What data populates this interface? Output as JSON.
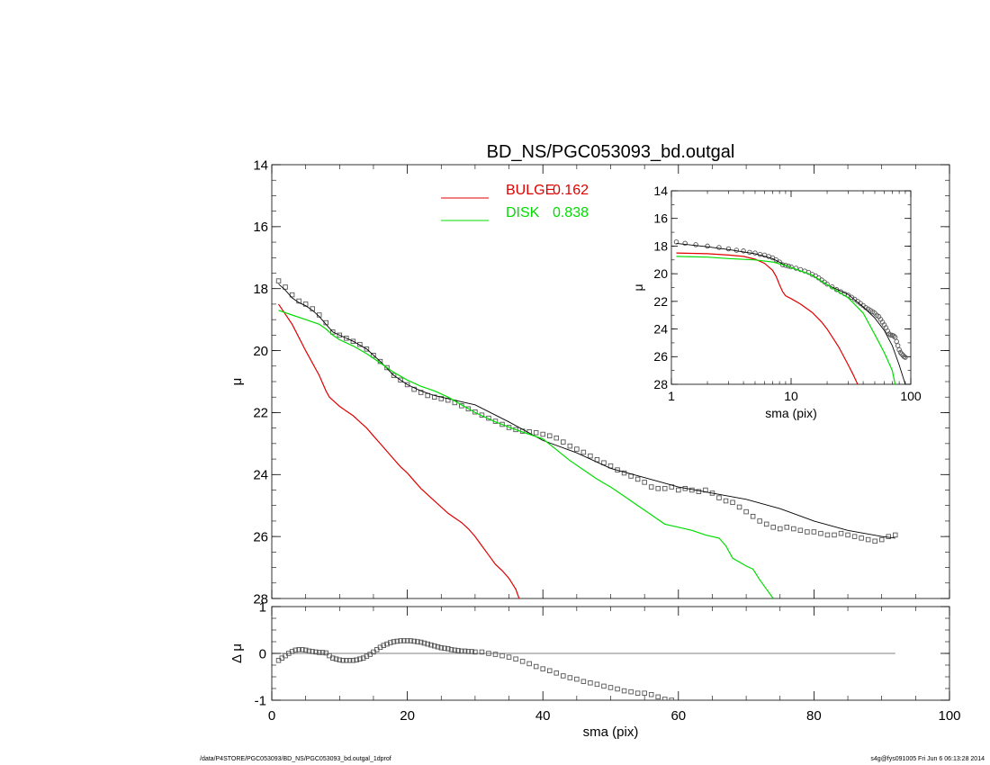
{
  "chart_data": [
    {
      "id": "main",
      "type": "line",
      "title": "BD_NS/PGC053093_bd.outgal",
      "xlabel": "",
      "ylabel": "μ",
      "xlim": [
        0,
        100
      ],
      "ylim": [
        28,
        14
      ],
      "y_inverted": true,
      "xticks": [
        "0",
        "20",
        "40",
        "60",
        "80",
        "100"
      ],
      "yticks": [
        "14",
        "16",
        "18",
        "20",
        "22",
        "24",
        "26",
        "28"
      ],
      "legend": {
        "placement": "top-center",
        "entries": [
          {
            "label": "BULGE",
            "value": "0.162",
            "color": "#e00000"
          },
          {
            "label": "DISK",
            "value": "0.838",
            "color": "#00dd00"
          }
        ]
      },
      "series": [
        {
          "role": "data",
          "color": "#000000",
          "marker": "square",
          "x": [
            1,
            2,
            3,
            4,
            5,
            6,
            7,
            8,
            9,
            10,
            11,
            12,
            13,
            14,
            15,
            16,
            17,
            18,
            19,
            20,
            21,
            22,
            23,
            24,
            25,
            26,
            27,
            28,
            29,
            30,
            31,
            32,
            33,
            34,
            35,
            36,
            37,
            38,
            39,
            40,
            41,
            42,
            43,
            44,
            45,
            46,
            47,
            48,
            49,
            50,
            51,
            52,
            53,
            54,
            55,
            56,
            57,
            58,
            59,
            60,
            61,
            62,
            63,
            64,
            65,
            66,
            67,
            68,
            69,
            70,
            71,
            72,
            73,
            74,
            75,
            76,
            77,
            78,
            79,
            80,
            81,
            82,
            83,
            84,
            85,
            86,
            87,
            88,
            89,
            90,
            91,
            92
          ],
          "y": [
            17.75,
            17.95,
            18.2,
            18.4,
            18.5,
            18.65,
            18.85,
            19.1,
            19.4,
            19.5,
            19.6,
            19.7,
            19.8,
            19.95,
            20.15,
            20.35,
            20.55,
            20.8,
            20.95,
            21.1,
            21.25,
            21.35,
            21.45,
            21.5,
            21.55,
            21.6,
            21.68,
            21.78,
            21.88,
            21.98,
            22.08,
            22.18,
            22.28,
            22.38,
            22.48,
            22.55,
            22.6,
            22.62,
            22.65,
            22.7,
            22.75,
            22.82,
            22.95,
            23.08,
            23.18,
            23.28,
            23.4,
            23.52,
            23.62,
            23.72,
            23.85,
            23.95,
            24.05,
            24.15,
            24.25,
            24.4,
            24.45,
            24.45,
            24.4,
            24.5,
            24.45,
            24.5,
            24.55,
            24.5,
            24.6,
            24.75,
            24.85,
            24.9,
            25.05,
            25.2,
            25.35,
            25.5,
            25.6,
            25.7,
            25.75,
            25.7,
            25.75,
            25.8,
            25.85,
            25.85,
            25.9,
            25.95,
            25.95,
            25.9,
            25.95,
            26.0,
            26.05,
            26.1,
            26.15,
            26.1,
            26.0,
            25.95
          ]
        },
        {
          "role": "model",
          "color": "#000000",
          "x": [
            1,
            2,
            3,
            4,
            5,
            6,
            7,
            8,
            9,
            10,
            12,
            14,
            16,
            18,
            20,
            22,
            24,
            26,
            28,
            30,
            35,
            40,
            45,
            50,
            55,
            60,
            65,
            70,
            75,
            80,
            85,
            90,
            92
          ],
          "y": [
            17.85,
            18.05,
            18.3,
            18.45,
            18.55,
            18.7,
            18.9,
            19.15,
            19.4,
            19.5,
            19.7,
            19.95,
            20.35,
            20.8,
            21.1,
            21.3,
            21.45,
            21.55,
            21.65,
            21.75,
            22.3,
            22.9,
            23.3,
            23.8,
            24.1,
            24.4,
            24.6,
            24.8,
            25.1,
            25.5,
            25.8,
            26.0,
            26.05
          ]
        },
        {
          "name": "BULGE",
          "color": "#e00000",
          "x": [
            1,
            3,
            5,
            7,
            8,
            8.5,
            9,
            9.5,
            10,
            11,
            12,
            13,
            14,
            15,
            16,
            17,
            18,
            19,
            20,
            21,
            22,
            23,
            24,
            25,
            26,
            27,
            28,
            29,
            30,
            31,
            32,
            33,
            34,
            35,
            36,
            36.5
          ],
          "y": [
            18.5,
            19.15,
            20.0,
            20.8,
            21.3,
            21.5,
            21.6,
            21.7,
            21.8,
            21.95,
            22.1,
            22.3,
            22.5,
            22.75,
            23.0,
            23.25,
            23.5,
            23.75,
            23.95,
            24.2,
            24.45,
            24.65,
            24.85,
            25.05,
            25.25,
            25.4,
            25.55,
            25.75,
            26.0,
            26.3,
            26.6,
            26.9,
            27.1,
            27.35,
            27.7,
            28.0
          ]
        },
        {
          "name": "DISK",
          "color": "#00dd00",
          "x": [
            1,
            3,
            5,
            7,
            8,
            9,
            10,
            12,
            14,
            16,
            18,
            20,
            22,
            24,
            26,
            28,
            30,
            33,
            36,
            38,
            40,
            42,
            44,
            46,
            48,
            50,
            52,
            54,
            56,
            57,
            58,
            60,
            62,
            64,
            66,
            67,
            68,
            70,
            71,
            72,
            73,
            74
          ],
          "y": [
            18.7,
            18.85,
            19.0,
            19.15,
            19.3,
            19.5,
            19.65,
            19.85,
            20.1,
            20.4,
            20.7,
            20.95,
            21.15,
            21.3,
            21.5,
            21.75,
            22.0,
            22.3,
            22.55,
            22.7,
            22.85,
            23.2,
            23.55,
            23.85,
            24.15,
            24.4,
            24.7,
            25.0,
            25.3,
            25.45,
            25.6,
            25.7,
            25.8,
            25.95,
            26.05,
            26.3,
            26.7,
            26.95,
            27.05,
            27.4,
            27.7,
            28.0
          ]
        }
      ]
    },
    {
      "id": "residual",
      "type": "scatter",
      "xlabel": "sma (pix)",
      "ylabel": "Δ μ",
      "xlim": [
        0,
        100
      ],
      "ylim": [
        -1,
        1
      ],
      "xticks": [
        "0",
        "20",
        "40",
        "60",
        "80",
        "100"
      ],
      "yticks": [
        "1",
        "0",
        "-1"
      ],
      "zero_line_xrange": [
        0,
        92
      ],
      "series": [
        {
          "role": "residual",
          "color": "#000000",
          "marker": "square",
          "x": [
            1,
            1.5,
            2,
            2.5,
            3,
            3.5,
            4,
            4.5,
            5,
            5.5,
            6,
            6.5,
            7,
            7.5,
            8,
            8.5,
            9,
            9.5,
            10,
            10.5,
            11,
            11.5,
            12,
            12.5,
            13,
            13.5,
            14,
            14.5,
            15,
            15.5,
            16,
            16.5,
            17,
            17.5,
            18,
            18.5,
            19,
            19.5,
            20,
            20.5,
            21,
            21.5,
            22,
            22.5,
            23,
            23.5,
            24,
            24.5,
            25,
            25.5,
            26,
            26.5,
            27,
            27.5,
            28,
            28.5,
            29,
            29.5,
            30,
            31,
            32,
            33,
            34,
            35,
            36,
            37,
            38,
            39,
            40,
            41,
            42,
            43,
            44,
            45,
            46,
            47,
            48,
            49,
            50,
            51,
            52,
            53,
            54,
            55,
            56,
            57,
            58,
            59
          ],
          "y": [
            -0.15,
            -0.1,
            -0.05,
            0.0,
            0.04,
            0.07,
            0.08,
            0.08,
            0.07,
            0.05,
            0.04,
            0.03,
            0.02,
            0.02,
            0.01,
            -0.05,
            -0.1,
            -0.12,
            -0.14,
            -0.15,
            -0.15,
            -0.15,
            -0.15,
            -0.14,
            -0.12,
            -0.1,
            -0.06,
            -0.02,
            0.03,
            0.08,
            0.13,
            0.17,
            0.2,
            0.23,
            0.25,
            0.26,
            0.27,
            0.27,
            0.27,
            0.27,
            0.26,
            0.25,
            0.24,
            0.22,
            0.2,
            0.18,
            0.16,
            0.14,
            0.12,
            0.11,
            0.1,
            0.08,
            0.07,
            0.06,
            0.05,
            0.05,
            0.04,
            0.04,
            0.03,
            0.03,
            0.0,
            -0.02,
            -0.05,
            -0.08,
            -0.12,
            -0.17,
            -0.22,
            -0.28,
            -0.33,
            -0.37,
            -0.42,
            -0.48,
            -0.52,
            -0.55,
            -0.6,
            -0.63,
            -0.66,
            -0.7,
            -0.73,
            -0.76,
            -0.8,
            -0.82,
            -0.85,
            -0.85,
            -0.88,
            -0.93,
            -0.98,
            -1.0
          ]
        }
      ]
    },
    {
      "id": "inset",
      "type": "line",
      "xlabel": "sma (pix)",
      "ylabel": "μ",
      "xscale": "log",
      "xlim": [
        1,
        100
      ],
      "ylim": [
        28,
        14
      ],
      "y_inverted": true,
      "xticks": [
        "1",
        "10",
        "100"
      ],
      "yticks": [
        "14",
        "16",
        "18",
        "20",
        "22",
        "24",
        "26",
        "28"
      ],
      "series": [
        {
          "role": "data",
          "color": "#000000",
          "marker": "circle",
          "x": [
            1.1,
            1.3,
            1.6,
            2,
            2.5,
            3,
            3.5,
            4,
            4.5,
            5,
            5.5,
            6,
            6.5,
            7,
            7.5,
            8,
            8.5,
            9,
            9.5,
            10,
            11,
            12,
            13,
            14,
            15,
            16,
            17,
            18,
            19,
            20,
            22,
            24,
            26,
            28,
            30,
            32,
            34,
            36,
            38,
            40,
            42,
            44,
            46,
            48,
            50,
            52,
            54,
            56,
            58,
            60,
            62,
            64,
            66,
            68,
            70,
            72,
            74,
            76,
            78,
            80,
            82,
            84,
            86,
            88,
            90
          ],
          "y": [
            17.7,
            17.8,
            17.9,
            18.0,
            18.1,
            18.2,
            18.3,
            18.35,
            18.45,
            18.5,
            18.6,
            18.65,
            18.75,
            18.85,
            19.0,
            19.15,
            19.35,
            19.4,
            19.45,
            19.5,
            19.6,
            19.7,
            19.8,
            19.9,
            20.05,
            20.15,
            20.3,
            20.45,
            20.6,
            20.75,
            20.95,
            21.15,
            21.3,
            21.45,
            21.55,
            21.7,
            21.85,
            22.0,
            22.15,
            22.3,
            22.45,
            22.55,
            22.65,
            22.75,
            22.85,
            23.0,
            23.1,
            23.3,
            23.5,
            23.7,
            23.9,
            24.15,
            24.35,
            24.45,
            24.45,
            24.5,
            24.6,
            24.9,
            25.2,
            25.5,
            25.7,
            25.8,
            25.9,
            26.0,
            26.05
          ]
        },
        {
          "role": "model",
          "color": "#000000",
          "x": [
            1.1,
            2,
            3,
            5,
            7,
            9,
            10,
            15,
            20,
            30,
            40,
            50,
            60,
            70,
            80,
            90
          ],
          "y": [
            17.8,
            18.05,
            18.25,
            18.55,
            18.9,
            19.4,
            19.55,
            20.1,
            20.8,
            21.5,
            22.4,
            23.2,
            24.1,
            25.2,
            26.6,
            28.0
          ]
        },
        {
          "name": "BULGE",
          "color": "#e00000",
          "x": [
            1.1,
            2,
            3,
            4,
            5,
            6,
            7,
            7.5,
            8,
            8.5,
            9,
            10,
            12,
            15,
            18,
            20,
            25,
            30,
            33,
            36
          ],
          "y": [
            18.5,
            18.55,
            18.65,
            18.75,
            18.95,
            19.25,
            19.75,
            20.2,
            20.8,
            21.3,
            21.6,
            21.8,
            22.2,
            22.8,
            23.5,
            24.0,
            25.3,
            26.6,
            27.3,
            28.0
          ]
        },
        {
          "name": "DISK",
          "color": "#00dd00",
          "x": [
            1.1,
            2,
            3,
            5,
            7,
            9,
            10,
            15,
            20,
            30,
            40,
            50,
            60,
            70,
            74
          ],
          "y": [
            18.75,
            18.8,
            18.9,
            19.0,
            19.15,
            19.4,
            19.55,
            20.1,
            20.8,
            21.75,
            22.85,
            24.4,
            25.7,
            27.0,
            28.0
          ]
        }
      ]
    }
  ],
  "footer": {
    "left": "/data/P4STORE/PGC053093/BD_NS/PGC053093_bd.outgal_1dprof",
    "right": "s4g@fys091005  Fri Jun  6 06:13:28 2014"
  }
}
